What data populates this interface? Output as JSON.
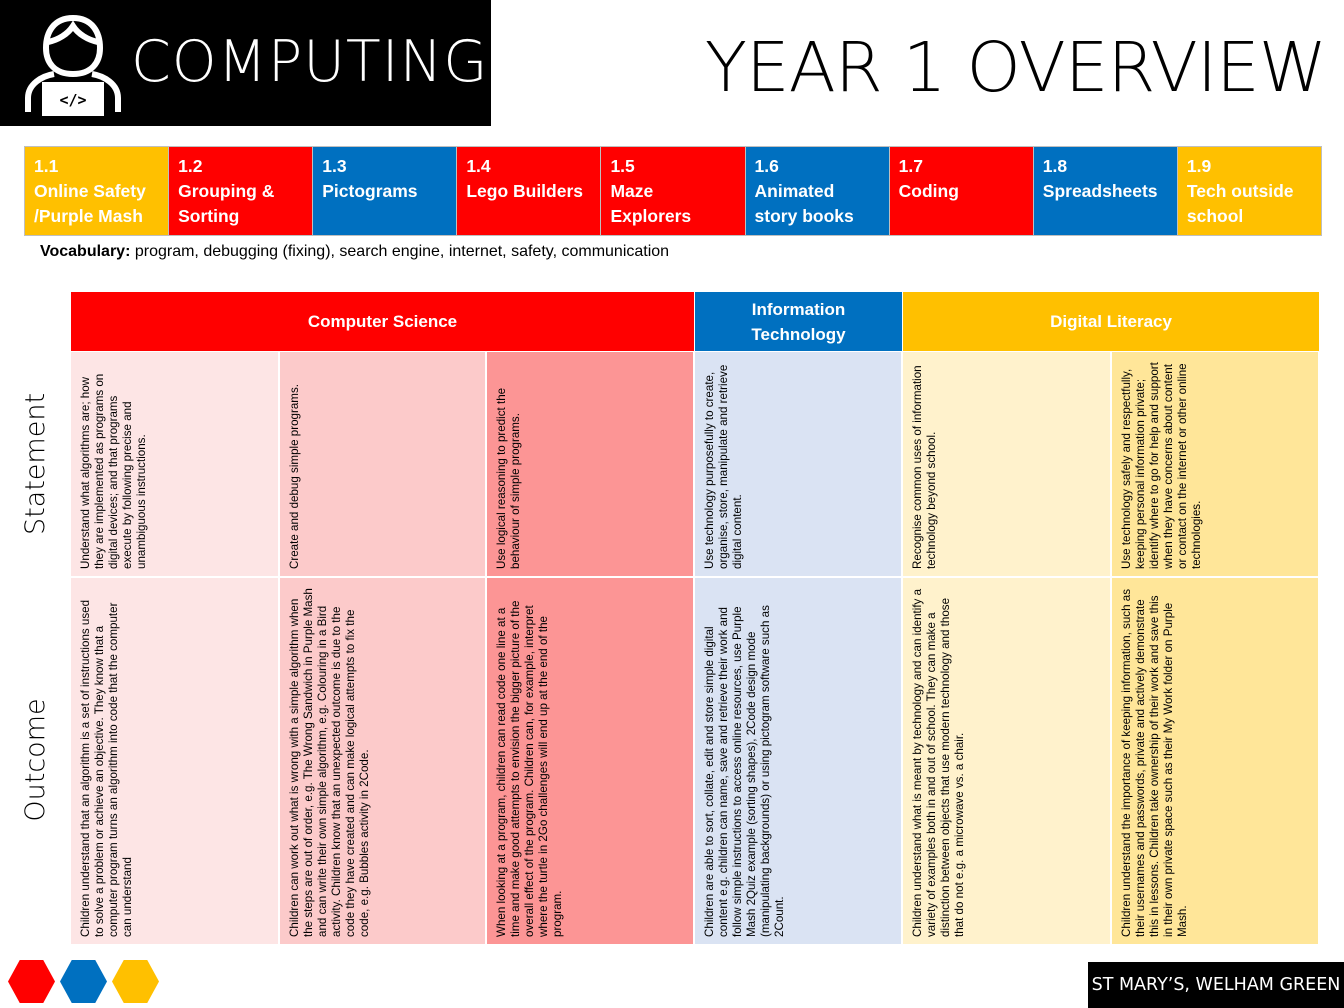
{
  "header": {
    "subject": "COMPUTING",
    "overview_title": "YEAR 1 OVERVIEW",
    "icon": "coder-person-icon"
  },
  "units": [
    {
      "num": "1.1",
      "name": "Online Safety /Purple Mash",
      "color": "#FFC000"
    },
    {
      "num": "1.2",
      "name": "Grouping & Sorting",
      "color": "#FF0000"
    },
    {
      "num": "1.3",
      "name": "Pictograms",
      "color": "#0070C0"
    },
    {
      "num": "1.4",
      "name": "Lego Builders",
      "color": "#FF0000"
    },
    {
      "num": "1.5",
      "name": "Maze Explorers",
      "color": "#FF0000"
    },
    {
      "num": "1.6",
      "name": "Animated story books",
      "color": "#0070C0"
    },
    {
      "num": "1.7",
      "name": "Coding",
      "color": "#FF0000"
    },
    {
      "num": "1.8",
      "name": "Spreadsheets",
      "color": "#0070C0"
    },
    {
      "num": "1.9",
      "name": "Tech outside school",
      "color": "#FFC000"
    }
  ],
  "vocabulary": {
    "label": "Vocabulary:",
    "text": " program, debugging (fixing), search engine, internet,  safety, communication"
  },
  "grid": {
    "headers": [
      {
        "label": "Computer Science",
        "color": "#FF0000"
      },
      {
        "label": "Information Technology",
        "color": "#0070C0"
      },
      {
        "label": "Digital Literacy",
        "color": "#FFC000"
      }
    ],
    "row_labels": {
      "statement": "Statement",
      "outcome": "Outcome"
    },
    "statements": [
      "Understand what algorithms are; how they are implemented as programs on digital devices; and that programs execute by following precise and unambiguous instructions.",
      "Create and debug simple programs.",
      "Use logical reasoning to predict the behaviour of simple programs.",
      "Use technology purposefully to create, organise, store, manipulate and retrieve digital content.",
      "Recognise common uses of information technology beyond school.",
      "Use technology safely and respectfully, keeping personal information private; identify where to go for help and support when they have concerns about content or contact on the internet or other online technologies."
    ],
    "outcomes": [
      "Children understand that an algorithm is a set of instructions used to solve a problem or achieve an objective. They know that a computer program turns an algorithm into code that the computer can understand",
      "Children can work out what is wrong with a simple algorithm when the steps are out of order, e.g. The Wrong Sandwich in Purple Mash and can write their own simple algorithm, e.g. Colouring in a Bird activity. Children know that an unexpected outcome is due to the code they have created and can make logical attempts to fix the code, e.g. Bubbles activity in 2Code.",
      "When looking at a program, children can read code one line at a time and make good attempts to envision the bigger picture of the overall effect of the program. Children can, for example, interpret where the turtle in 2Go challenges will end up at the end of the program.",
      "Children are able to sort, collate, edit and store simple digital content e.g. children can name, save and retrieve their work and follow simple instructions to access online resources, use Purple Mash 2Quiz example (sorting shapes), 2Code design mode (manipulating backgrounds) or using pictogram software such as 2Count.",
      "Children understand what is meant by technology and can identify a variety of examples both in and out of school. They can make a distinction between objects that use modern technology and those that do not e.g. a microwave vs. a chair.",
      "Children understand the importance of keeping information, such as their usernames and passwords, private and actively demonstrate this in lessons. Children take ownership of their work and save this in their own private space such as their My Work folder on Purple Mash."
    ],
    "cell_colors": [
      "#FDE5E5",
      "#FCCACA",
      "#FC9595",
      "#DAE3F3",
      "#FFF2CC",
      "#FFE699"
    ]
  },
  "footer": {
    "school": "ST MARY’S, WELHAM GREEN",
    "hex_colors": [
      "#FF0000",
      "#0070C0",
      "#FFC000"
    ]
  }
}
